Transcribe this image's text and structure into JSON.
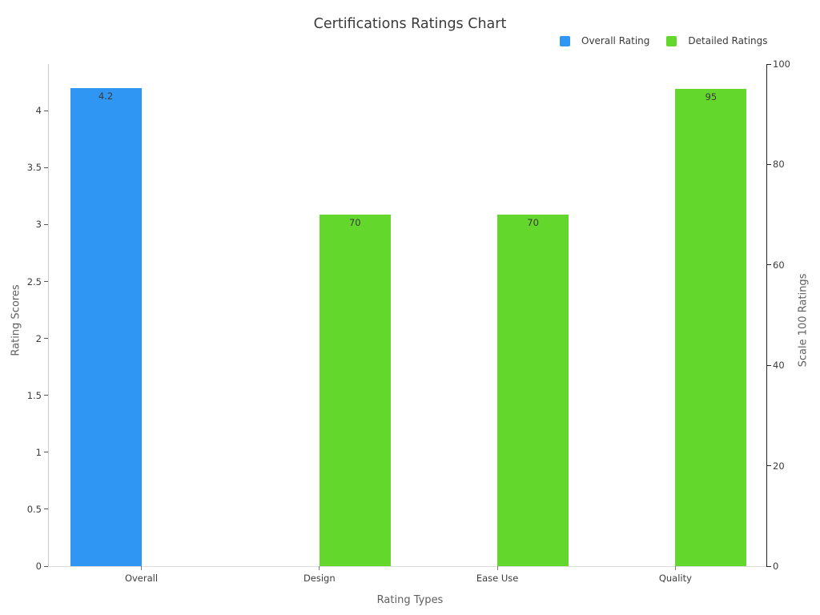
{
  "chart_data": {
    "type": "bar",
    "title": "Certifications Ratings Chart",
    "categories": [
      "Overall",
      "Design",
      "Ease Use",
      "Quality"
    ],
    "xlabel": "Rating Types",
    "axes": {
      "left": {
        "label": "Rating Scores",
        "ticks": [
          0,
          0.5,
          1,
          1.5,
          2,
          2.5,
          3,
          3.5,
          4
        ],
        "range": [
          0,
          4.41
        ]
      },
      "right": {
        "label": "Scale 100 Ratings",
        "ticks": [
          0,
          20,
          40,
          60,
          80,
          100
        ],
        "range": [
          0,
          100
        ]
      }
    },
    "series": [
      {
        "name": "Overall Rating",
        "axis": "left",
        "color": "#2f96f3",
        "values": [
          4.2,
          null,
          null,
          null
        ]
      },
      {
        "name": "Detailed Ratings",
        "axis": "right",
        "color": "#63d72c",
        "values": [
          null,
          70,
          70,
          95
        ]
      }
    ],
    "bar_labels": true,
    "legend_position": "top-right",
    "grid": false
  }
}
